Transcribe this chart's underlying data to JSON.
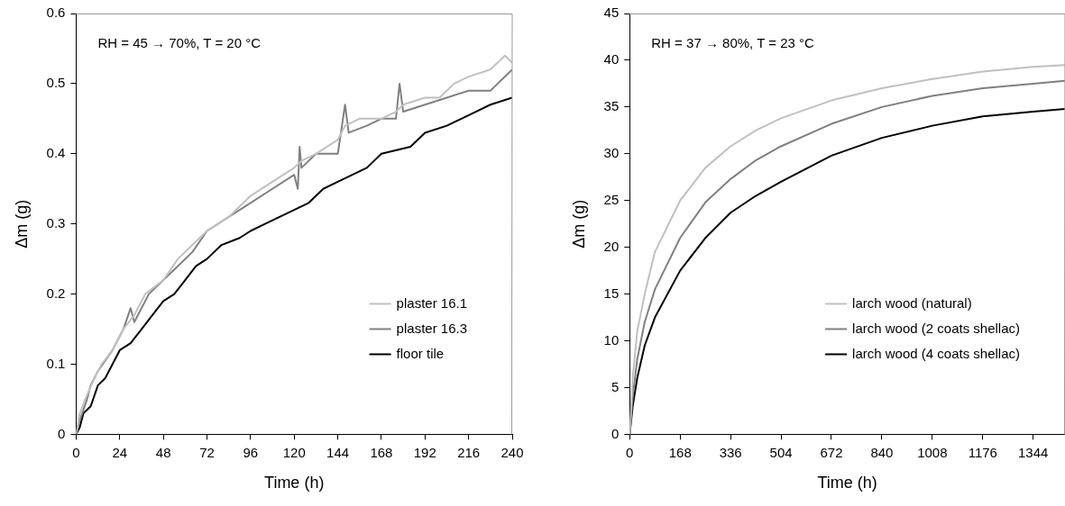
{
  "chart_data": [
    {
      "type": "line",
      "xlabel": "Time (h)",
      "ylabel": "Δm (g)",
      "annotations": [
        "RH = 45 → 70%, T = 20 °C"
      ],
      "xlim": [
        0,
        240
      ],
      "xticks": [
        0,
        24,
        48,
        72,
        96,
        120,
        144,
        168,
        192,
        216,
        240
      ],
      "ylim": [
        0,
        0.6
      ],
      "yticks": [
        0,
        0.1,
        0.2,
        0.3,
        0.4,
        0.5,
        0.6
      ],
      "grid": false,
      "legend": "bottom right",
      "marker": "none",
      "line_style": "solid",
      "series": [
        {
          "name": "plaster 16.1",
          "color": "#c0c0c0",
          "x": [
            0,
            2,
            5,
            10,
            14,
            20,
            26,
            32,
            38,
            48,
            56,
            64,
            72,
            84,
            96,
            108,
            120,
            124,
            132,
            144,
            148,
            156,
            168,
            176,
            180,
            192,
            200,
            208,
            216,
            228,
            236,
            240
          ],
          "values": [
            0,
            0.03,
            0.05,
            0.08,
            0.1,
            0.12,
            0.15,
            0.17,
            0.2,
            0.22,
            0.25,
            0.27,
            0.29,
            0.31,
            0.34,
            0.36,
            0.38,
            0.39,
            0.4,
            0.42,
            0.44,
            0.45,
            0.45,
            0.46,
            0.47,
            0.48,
            0.48,
            0.5,
            0.51,
            0.52,
            0.54,
            0.53
          ]
        },
        {
          "name": "plaster 16.3",
          "color": "#808080",
          "x": [
            0,
            2,
            6,
            8,
            12,
            20,
            26,
            30,
            32,
            40,
            48,
            56,
            64,
            72,
            84,
            96,
            108,
            120,
            122,
            123,
            124,
            132,
            144,
            148,
            150,
            160,
            168,
            176,
            178,
            180,
            192,
            204,
            216,
            228,
            232,
            240
          ],
          "values": [
            0,
            0.02,
            0.05,
            0.07,
            0.09,
            0.12,
            0.15,
            0.18,
            0.16,
            0.2,
            0.22,
            0.24,
            0.26,
            0.29,
            0.31,
            0.33,
            0.35,
            0.37,
            0.35,
            0.41,
            0.38,
            0.4,
            0.4,
            0.47,
            0.43,
            0.44,
            0.45,
            0.45,
            0.5,
            0.46,
            0.47,
            0.48,
            0.49,
            0.49,
            0.5,
            0.52
          ]
        },
        {
          "name": "floor tile",
          "color": "#000000",
          "x": [
            0,
            2,
            4,
            8,
            12,
            16,
            20,
            24,
            30,
            36,
            42,
            48,
            54,
            60,
            66,
            72,
            80,
            90,
            96,
            104,
            112,
            120,
            128,
            136,
            144,
            152,
            160,
            168,
            184,
            192,
            204,
            212,
            220,
            228,
            240
          ],
          "values": [
            0,
            0.01,
            0.03,
            0.04,
            0.07,
            0.08,
            0.1,
            0.12,
            0.13,
            0.15,
            0.17,
            0.19,
            0.2,
            0.22,
            0.24,
            0.25,
            0.27,
            0.28,
            0.29,
            0.3,
            0.31,
            0.32,
            0.33,
            0.35,
            0.36,
            0.37,
            0.38,
            0.4,
            0.41,
            0.43,
            0.44,
            0.45,
            0.46,
            0.47,
            0.48
          ]
        }
      ]
    },
    {
      "type": "line",
      "xlabel": "Time (h)",
      "ylabel": "Δm (g)",
      "annotations": [
        "RH = 37 → 80%, T = 23 °C"
      ],
      "xlim": [
        0,
        1450
      ],
      "xticks": [
        0,
        168,
        336,
        504,
        672,
        840,
        1008,
        1176,
        1344
      ],
      "ylim": [
        0,
        45
      ],
      "yticks": [
        0,
        5,
        10,
        15,
        20,
        25,
        30,
        35,
        40,
        45
      ],
      "grid": false,
      "legend": "bottom right",
      "marker": "none",
      "line_style": "solid",
      "series": [
        {
          "name": "larch wood (natural)",
          "color": "#c0c0c0",
          "x": [
            0,
            10,
            25,
            50,
            84,
            168,
            252,
            336,
            420,
            504,
            672,
            840,
            1008,
            1176,
            1344,
            1450
          ],
          "values": [
            0,
            6,
            11,
            15,
            19.5,
            25,
            28.5,
            30.8,
            32.5,
            33.8,
            35.7,
            37,
            38,
            38.8,
            39.3,
            39.5
          ]
        },
        {
          "name": "larch wood (2 coats shellac)",
          "color": "#808080",
          "x": [
            0,
            10,
            25,
            50,
            84,
            168,
            252,
            336,
            420,
            504,
            672,
            840,
            1008,
            1176,
            1344,
            1450
          ],
          "values": [
            0,
            4,
            8,
            12,
            15.5,
            21,
            24.8,
            27.3,
            29.3,
            30.8,
            33.2,
            35,
            36.2,
            37,
            37.5,
            37.8
          ]
        },
        {
          "name": "larch wood (4 coats shellac)",
          "color": "#000000",
          "x": [
            0,
            10,
            25,
            50,
            84,
            168,
            252,
            336,
            420,
            504,
            672,
            840,
            1008,
            1176,
            1344,
            1450
          ],
          "values": [
            0,
            3,
            6,
            9.5,
            12.5,
            17.5,
            21,
            23.7,
            25.5,
            27,
            29.8,
            31.7,
            33,
            34,
            34.5,
            34.8
          ]
        }
      ]
    }
  ]
}
